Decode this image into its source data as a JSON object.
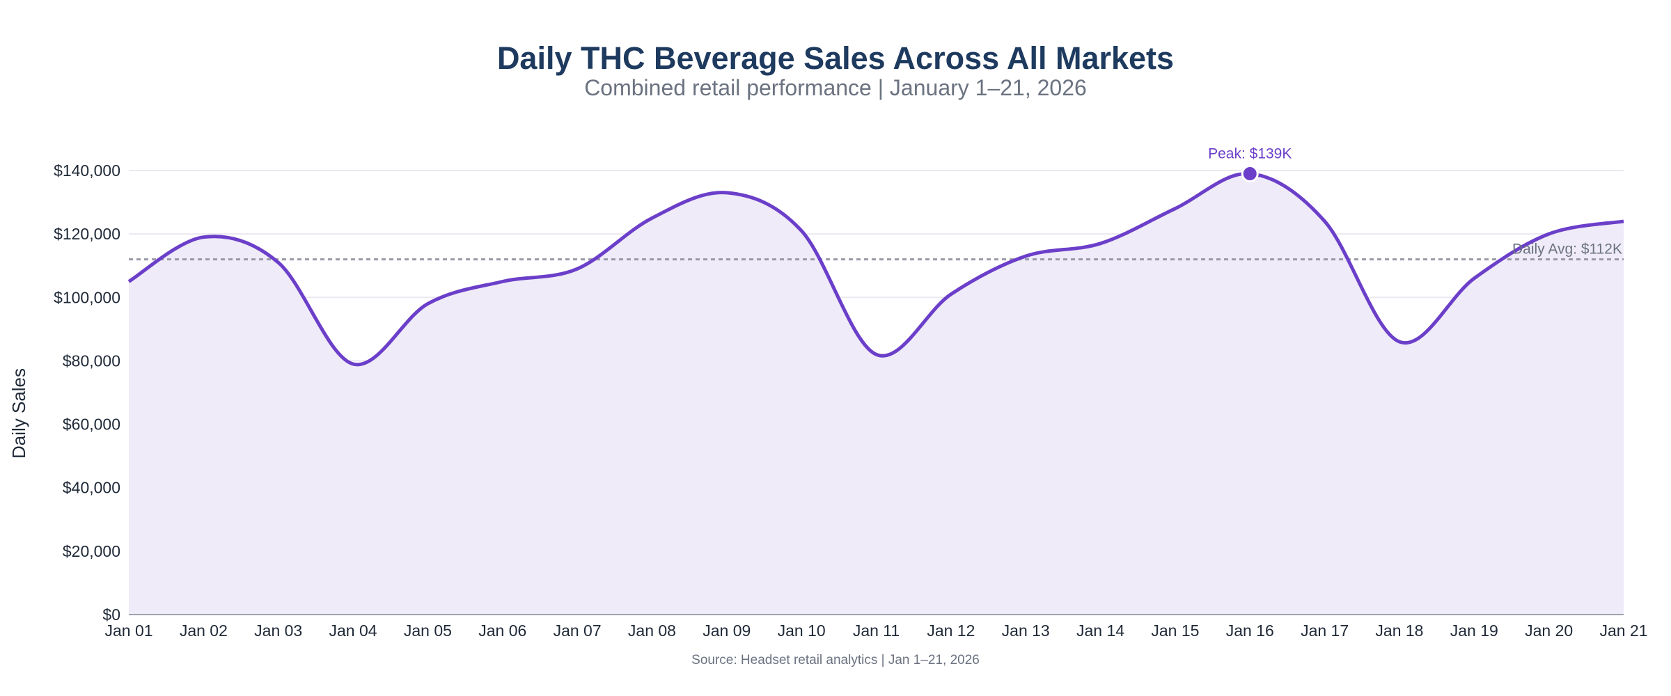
{
  "chart_data": {
    "type": "area",
    "title": "Daily THC Beverage Sales Across All Markets",
    "subtitle": "Combined retail performance | January 1–21, 2026",
    "xlabel": "",
    "ylabel": "Daily Sales",
    "source": "Source: Headset retail analytics | Jan 1–21, 2026",
    "categories": [
      "Jan 01",
      "Jan 02",
      "Jan 03",
      "Jan 04",
      "Jan 05",
      "Jan 06",
      "Jan 07",
      "Jan 08",
      "Jan 09",
      "Jan 10",
      "Jan 11",
      "Jan 12",
      "Jan 13",
      "Jan 14",
      "Jan 15",
      "Jan 16",
      "Jan 17",
      "Jan 18",
      "Jan 19",
      "Jan 20",
      "Jan 21"
    ],
    "values": [
      105000,
      119000,
      111000,
      79000,
      98000,
      105000,
      109000,
      125000,
      133000,
      121000,
      82000,
      101000,
      113000,
      117000,
      128000,
      139000,
      124000,
      86000,
      106000,
      120000,
      124000
    ],
    "ylim": [
      0,
      140000
    ],
    "yticks": [
      0,
      20000,
      40000,
      60000,
      80000,
      100000,
      120000,
      140000
    ],
    "ytick_labels": [
      "$0",
      "$20,000",
      "$40,000",
      "$60,000",
      "$80,000",
      "$100,000",
      "$120,000",
      "$140,000"
    ],
    "grid": true,
    "smooth": true,
    "annotations": {
      "peak": {
        "label": "Peak: $139K",
        "category": "Jan 16",
        "value": 139000
      },
      "average": {
        "label": "Daily Avg: $112K",
        "value": 112000
      }
    },
    "colors": {
      "line": "#6b3fc9",
      "fill": "#efebf8",
      "average": "#9a9aa8",
      "title": "#1e3a5f",
      "subtitle": "#6b7280",
      "grid": "#ebe8f0"
    }
  }
}
